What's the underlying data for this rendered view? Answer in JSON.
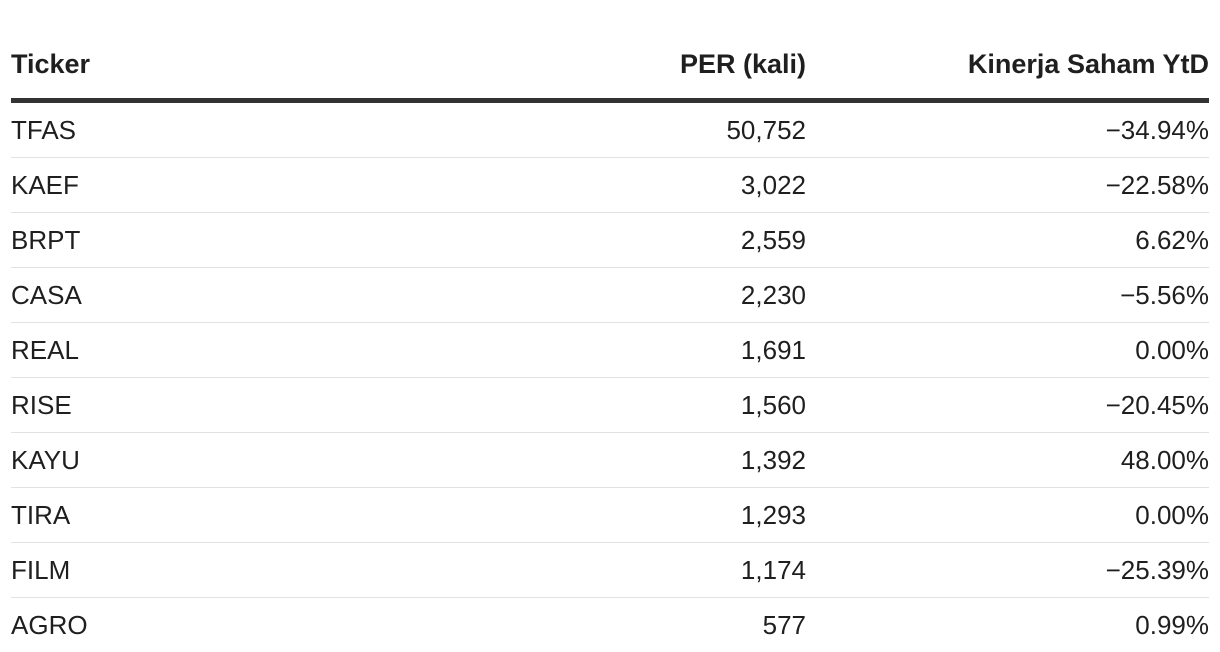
{
  "table": {
    "headers": {
      "ticker": "Ticker",
      "per": "PER (kali)",
      "perf": "Kinerja Saham YtD"
    },
    "rows": [
      {
        "ticker": "TFAS",
        "per": "50,752",
        "perf": "−34.94%"
      },
      {
        "ticker": "KAEF",
        "per": "3,022",
        "perf": "−22.58%"
      },
      {
        "ticker": "BRPT",
        "per": "2,559",
        "perf": "6.62%"
      },
      {
        "ticker": "CASA",
        "per": "2,230",
        "perf": "−5.56%"
      },
      {
        "ticker": "REAL",
        "per": "1,691",
        "perf": "0.00%"
      },
      {
        "ticker": "RISE",
        "per": "1,560",
        "perf": "−20.45%"
      },
      {
        "ticker": "KAYU",
        "per": "1,392",
        "perf": "48.00%"
      },
      {
        "ticker": "TIRA",
        "per": "1,293",
        "perf": "0.00%"
      },
      {
        "ticker": "FILM",
        "per": "1,174",
        "perf": "−25.39%"
      },
      {
        "ticker": "AGRO",
        "per": "577",
        "perf": "0.99%"
      }
    ]
  }
}
